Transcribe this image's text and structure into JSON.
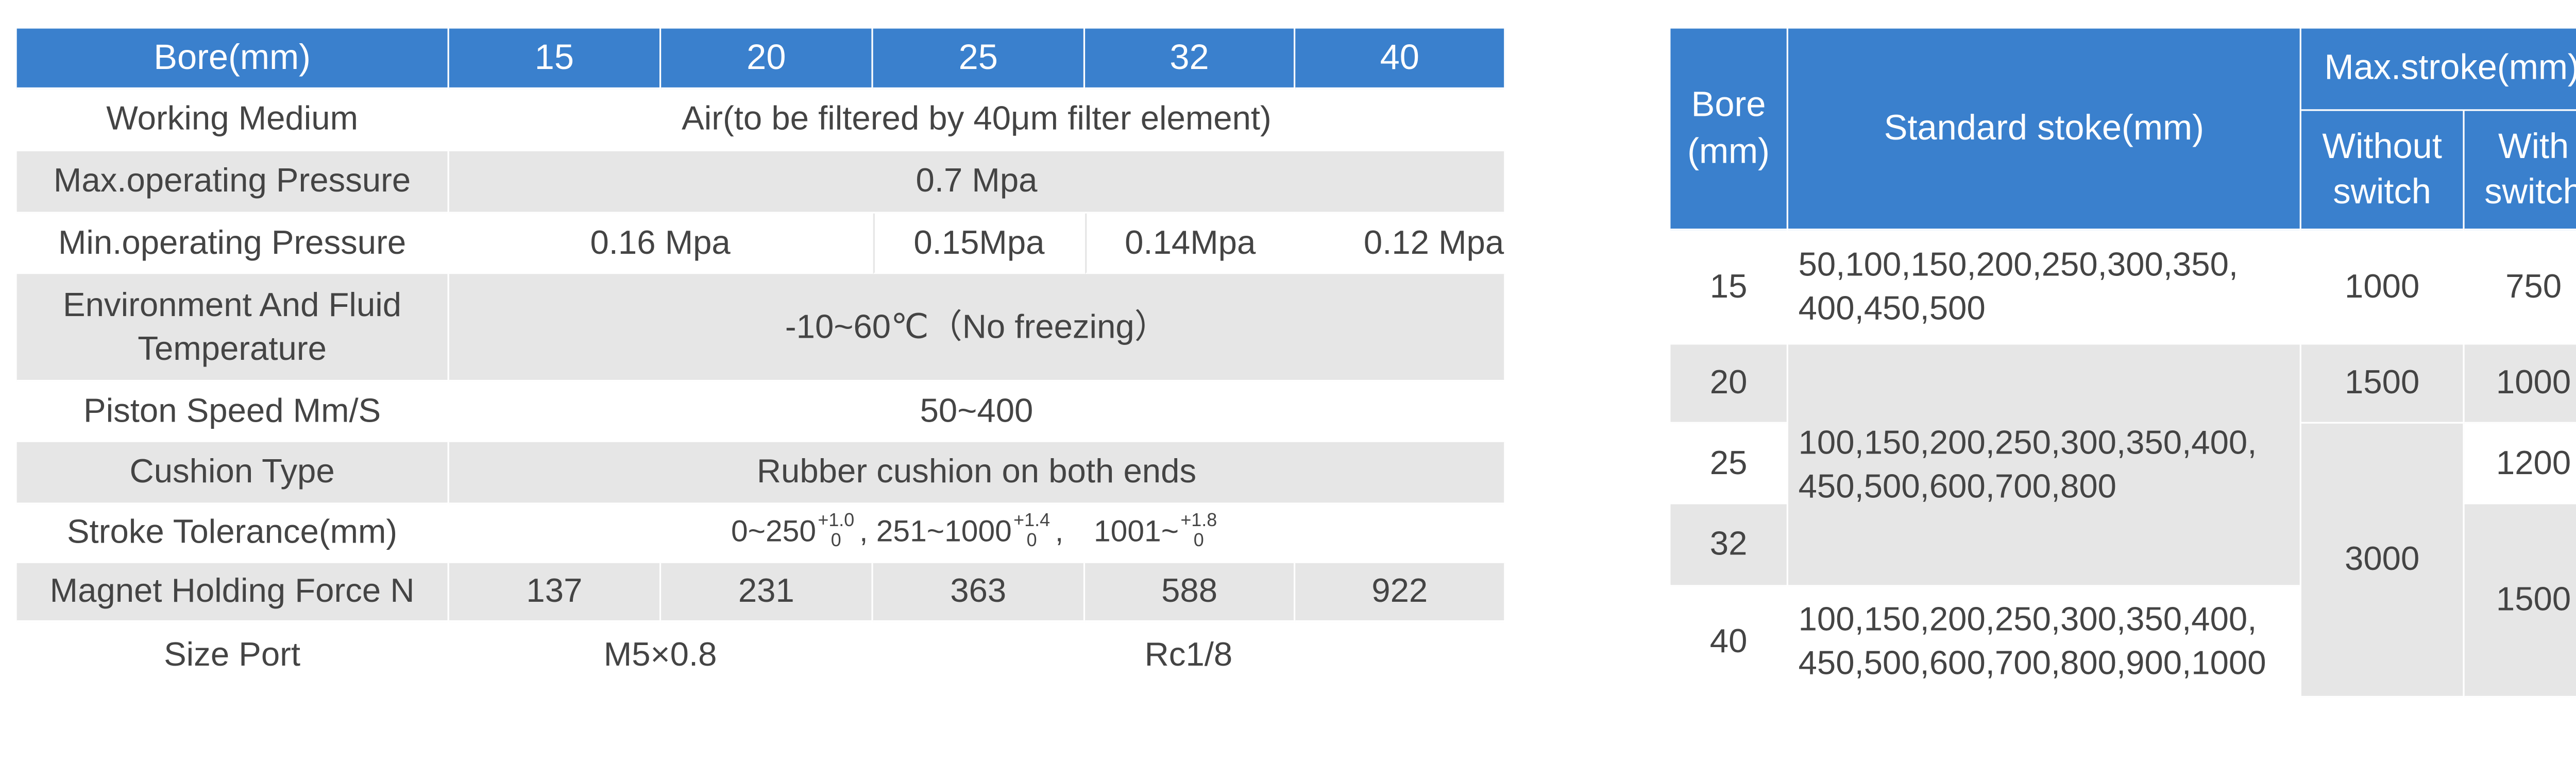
{
  "left_table": {
    "header": [
      "Bore(mm)",
      "15",
      "20",
      "25",
      "32",
      "40"
    ],
    "rows": [
      {
        "label": "Working Medium",
        "values": [
          "Air(to be filtered by 40μm filter element)"
        ]
      },
      {
        "label": "Max.operating Pressure",
        "values": [
          "0.7 Mpa"
        ]
      },
      {
        "label": "Min.operating Pressure",
        "values": [
          "0.16 Mpa",
          "0.15Mpa",
          "0.14Mpa",
          "0.12 Mpa"
        ]
      },
      {
        "label": "Environment And Fluid Temperature",
        "values": [
          "-10~60℃（No freezing）"
        ]
      },
      {
        "label": "Piston Speed Mm/S",
        "values": [
          "50~400"
        ]
      },
      {
        "label": "Cushion Type",
        "values": [
          "Rubber cushion on both ends"
        ]
      },
      {
        "label": "Stroke Tolerance(mm)",
        "segments": [
          {
            "range": "0~250",
            "upper": "+1.0",
            "lower": "0"
          },
          {
            "range": ", 251~1000",
            "upper": "+1.4",
            "lower": "0"
          },
          {
            "range": ",　1001~",
            "upper": "+1.8",
            "lower": "0"
          }
        ]
      },
      {
        "label": "Magnet Holding Force N",
        "values": [
          "137",
          "231",
          "363",
          "588",
          "922"
        ]
      },
      {
        "label": "Size Port",
        "values": [
          "M5×0.8",
          "Rc1/8"
        ]
      }
    ]
  },
  "right_table": {
    "header": {
      "bore": "Bore (mm)",
      "standard": "Standard stoke(mm)",
      "max": "Max.stroke(mm)",
      "without": "Without switch",
      "with": "With switch"
    },
    "bores": [
      "15",
      "20",
      "25",
      "32",
      "40"
    ],
    "standard": [
      [
        "50,100,150,200,250,300,350,",
        "400,450,500"
      ],
      [
        "100,150,200,250,300,350,400,",
        "450,500,600,700,800"
      ],
      [
        "100,150,200,250,300,350,400,",
        "450,500,600,700,800,900,1000"
      ]
    ],
    "without": [
      "1000",
      "1500",
      "3000"
    ],
    "with": [
      "750",
      "1000",
      "1200",
      "1500"
    ]
  }
}
